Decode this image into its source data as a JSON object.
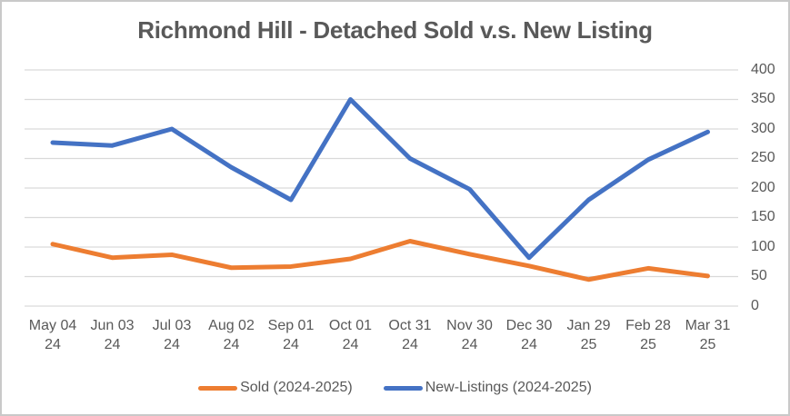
{
  "window": {
    "title": "Richmond Hill - Detached Sold v.s. New Listing"
  },
  "colors": {
    "sold_series": "#ED7D31",
    "new_listings_series": "#4472C4",
    "gridline": "#D9D9D9",
    "text": "#595959",
    "frame_border": "#C9C9C9"
  },
  "chart_data": {
    "type": "line",
    "title": "Richmond Hill - Detached Sold v.s. New Listing",
    "categories": [
      "May 04 24",
      "Jun 03 24",
      "Jul 03 24",
      "Aug 02 24",
      "Sep 01 24",
      "Oct 01 24",
      "Oct 31 24",
      "Nov 30 24",
      "Dec 30 24",
      "Jan 29 25",
      "Feb 28 25",
      "Mar 31 25"
    ],
    "series": [
      {
        "name": "Sold (2024-2025)",
        "color": "#ED7D31",
        "values": [
          105,
          82,
          87,
          65,
          67,
          80,
          110,
          88,
          68,
          45,
          64,
          51
        ]
      },
      {
        "name": "New-Listings (2024-2025)",
        "color": "#4472C4",
        "values": [
          277,
          272,
          300,
          235,
          180,
          350,
          250,
          198,
          82,
          180,
          248,
          295
        ]
      }
    ],
    "xlabel": "",
    "ylabel": "",
    "ylim": [
      0,
      400
    ],
    "yticks": [
      400,
      350,
      300,
      250,
      200,
      150,
      100,
      50,
      0
    ],
    "grid": true,
    "y_axis_side": "right",
    "legend_position": "bottom"
  }
}
